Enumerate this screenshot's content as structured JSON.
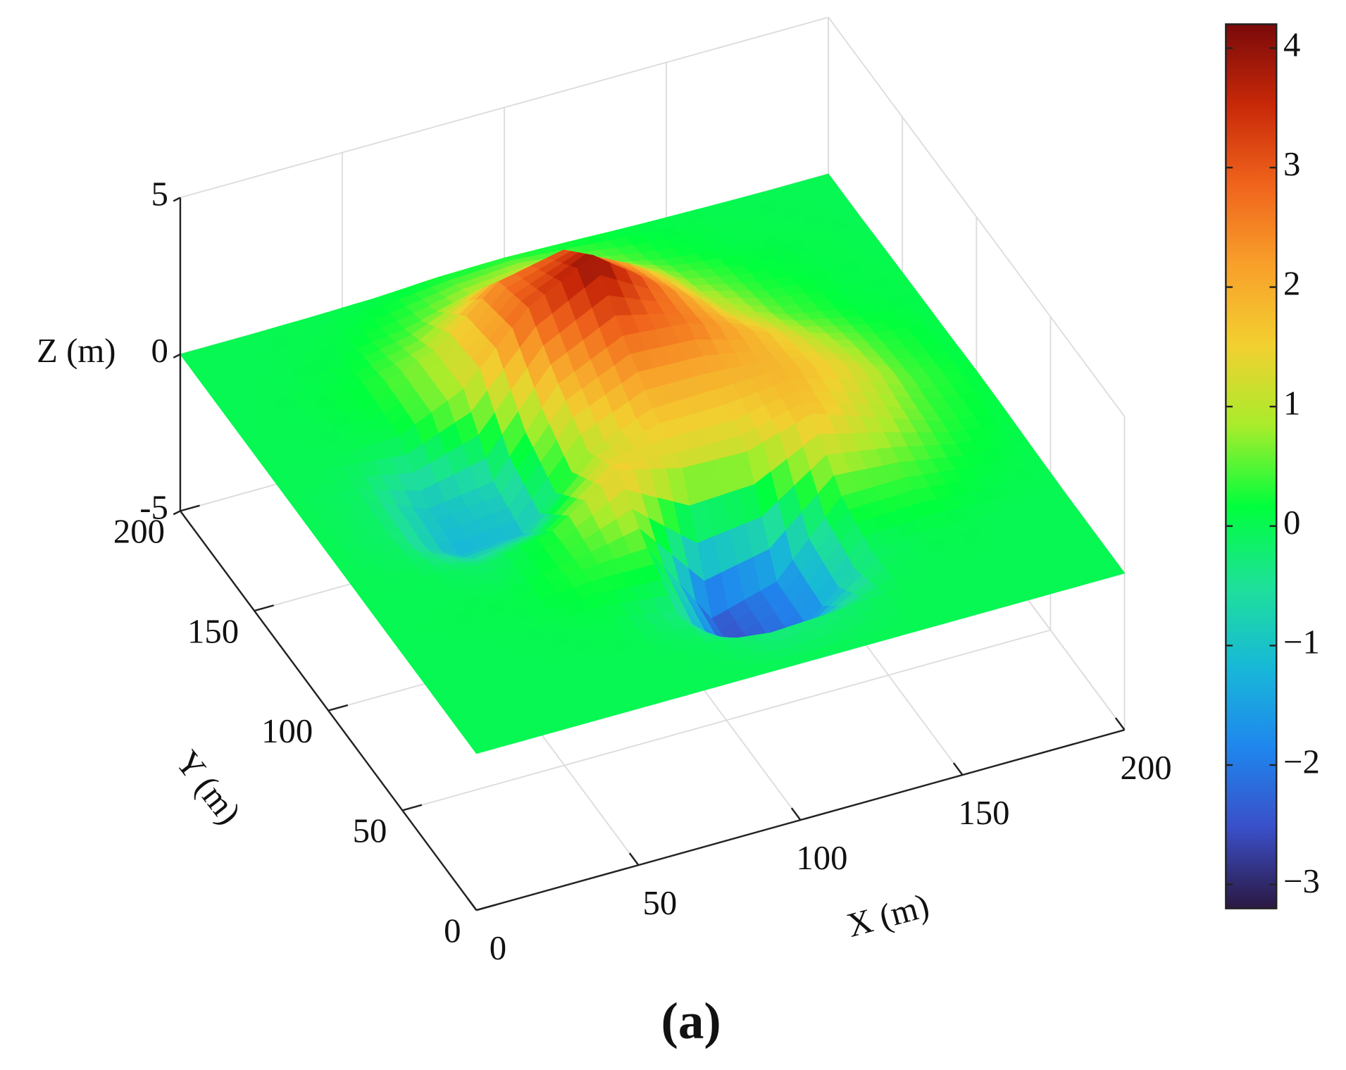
{
  "chart_data": {
    "type": "surface",
    "xlabel": "X (m)",
    "ylabel": "Y (m)",
    "zlabel": "Z (m)",
    "x": [
      0,
      20,
      40,
      60,
      80,
      100,
      120,
      140,
      160,
      180,
      200
    ],
    "y": [
      0,
      20,
      40,
      60,
      80,
      100,
      120,
      140,
      160,
      180,
      200
    ],
    "z": [
      [
        0,
        0,
        0,
        0,
        0,
        0,
        0,
        0,
        0,
        0,
        0
      ],
      [
        0,
        0,
        0,
        0,
        -0.05,
        -0.3,
        -0.2,
        0,
        0,
        0,
        0
      ],
      [
        0,
        0,
        0.02,
        0.06,
        -0.33,
        -2.6,
        -1.9,
        -0.1,
        0.05,
        0,
        0
      ],
      [
        0,
        0.02,
        0.06,
        0.31,
        0.42,
        -2.4,
        -1.8,
        0.35,
        0.38,
        0.13,
        0.03
      ],
      [
        0,
        -0.02,
        -0.17,
        0.27,
        1.64,
        1.13,
        1.07,
        1.72,
        1.02,
        0.32,
        0.07
      ],
      [
        0,
        -0.15,
        -1.2,
        -1.1,
        0.96,
        1.76,
        1.8,
        1.9,
        1.37,
        0.44,
        0.09
      ],
      [
        0,
        -0.13,
        -1.0,
        -0.7,
        1.84,
        2.8,
        2.63,
        1.82,
        0.98,
        0.32,
        0.06
      ],
      [
        0,
        0,
        0.04,
        0.98,
        3.0,
        4.1,
        2.6,
        1.22,
        0.48,
        0.12,
        0.05
      ],
      [
        0,
        0.03,
        0.2,
        0.92,
        2.56,
        3.0,
        1.99,
        0.71,
        0.24,
        0.08,
        0.03
      ],
      [
        0,
        0.01,
        0.08,
        0.34,
        0.89,
        1.14,
        0.72,
        0.27,
        0.08,
        0.04,
        0
      ],
      [
        0,
        0,
        0.02,
        0.06,
        0.17,
        0.2,
        0.14,
        0.07,
        0.03,
        0,
        0
      ]
    ],
    "xlim": [
      0,
      200
    ],
    "ylim": [
      0,
      200
    ],
    "zlim": [
      -5,
      5
    ],
    "xticks": [
      0,
      50,
      100,
      150,
      200
    ],
    "yticks": [
      0,
      50,
      100,
      150,
      200
    ],
    "zticks": [
      -5,
      0,
      5
    ],
    "grid": true,
    "colorbar": {
      "clim": [
        -3.2,
        4.2
      ],
      "ticks": [
        {
          "value": -3,
          "label": "−3"
        },
        {
          "value": -2,
          "label": "−2"
        },
        {
          "value": -1,
          "label": "−1"
        },
        0,
        1,
        2,
        3,
        4
      ],
      "colormap": [
        "#2b1842",
        "#3a4fc8",
        "#1f86ee",
        "#18b8d8",
        "#1ee09a",
        "#00ff3c",
        "#a8ec2c",
        "#f2d030",
        "#f8a02a",
        "#f0641c",
        "#c82808",
        "#7a0a0a"
      ]
    }
  },
  "caption": "(a)"
}
